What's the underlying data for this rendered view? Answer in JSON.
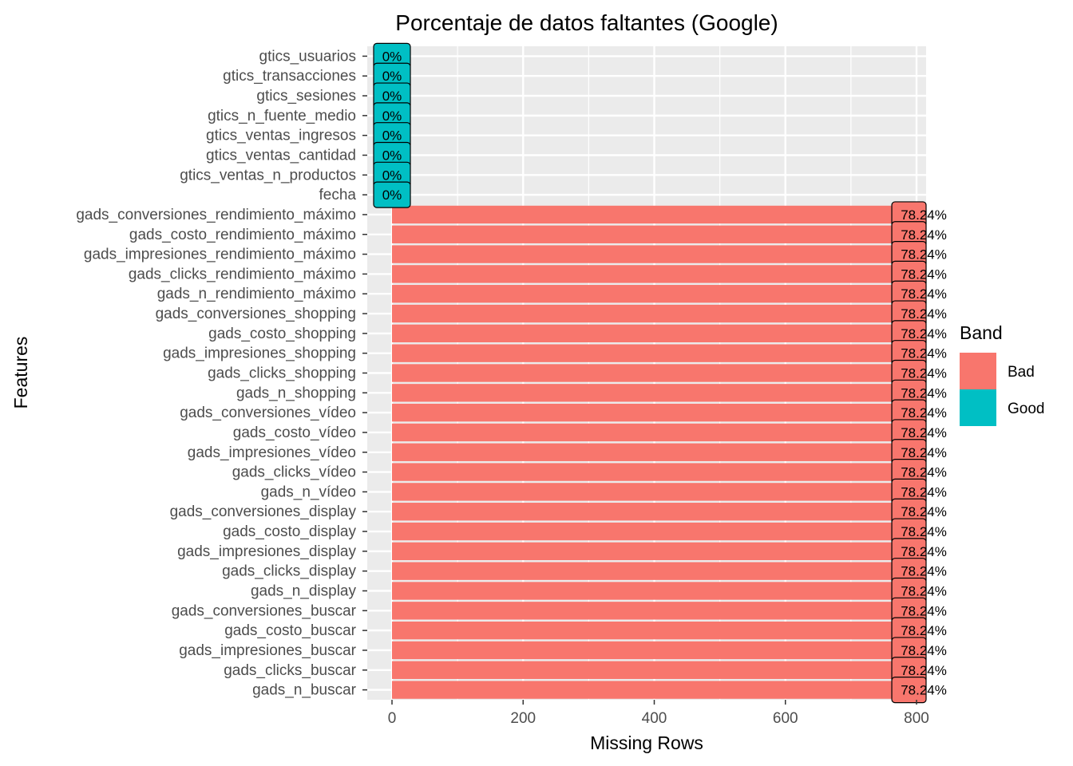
{
  "chart_data": {
    "type": "bar",
    "orientation": "horizontal",
    "title": "Porcentaje de datos faltantes (Google)",
    "xlabel": "Missing Rows",
    "ylabel": "Features",
    "xlim": [
      -30,
      810
    ],
    "x_ticks": [
      0,
      200,
      400,
      600,
      800
    ],
    "x_tick_labels": [
      "0",
      "200",
      "400",
      "600",
      "800"
    ],
    "grid": true,
    "legend": {
      "title": "Band",
      "position": "right",
      "entries": [
        {
          "label": "Bad",
          "color": "#F8766D"
        },
        {
          "label": "Good",
          "color": "#00BFC4"
        }
      ]
    },
    "categories": [
      "gtics_usuarios",
      "gtics_transacciones",
      "gtics_sesiones",
      "gtics_n_fuente_medio",
      "gtics_ventas_ingresos",
      "gtics_ventas_cantidad",
      "gtics_ventas_n_productos",
      "fecha",
      "gads_conversiones_rendimiento_máximo",
      "gads_costo_rendimiento_máximo",
      "gads_impresiones_rendimiento_máximo",
      "gads_clicks_rendimiento_máximo",
      "gads_n_rendimiento_máximo",
      "gads_conversiones_shopping",
      "gads_costo_shopping",
      "gads_impresiones_shopping",
      "gads_clicks_shopping",
      "gads_n_shopping",
      "gads_conversiones_vídeo",
      "gads_costo_vídeo",
      "gads_impresiones_vídeo",
      "gads_clicks_vídeo",
      "gads_n_vídeo",
      "gads_conversiones_display",
      "gads_costo_display",
      "gads_impresiones_display",
      "gads_clicks_display",
      "gads_n_display",
      "gads_conversiones_buscar",
      "gads_costo_buscar",
      "gads_impresiones_buscar",
      "gads_clicks_buscar",
      "gads_n_buscar"
    ],
    "values": [
      0,
      0,
      0,
      0,
      0,
      0,
      0,
      0,
      811,
      811,
      811,
      811,
      811,
      811,
      811,
      811,
      811,
      811,
      811,
      811,
      811,
      811,
      811,
      811,
      811,
      811,
      811,
      811,
      811,
      811,
      811,
      811,
      811
    ],
    "bands": [
      "Good",
      "Good",
      "Good",
      "Good",
      "Good",
      "Good",
      "Good",
      "Good",
      "Bad",
      "Bad",
      "Bad",
      "Bad",
      "Bad",
      "Bad",
      "Bad",
      "Bad",
      "Bad",
      "Bad",
      "Bad",
      "Bad",
      "Bad",
      "Bad",
      "Bad",
      "Bad",
      "Bad",
      "Bad",
      "Bad",
      "Bad",
      "Bad",
      "Bad",
      "Bad",
      "Bad",
      "Bad"
    ],
    "labels": [
      "0%",
      "0%",
      "0%",
      "0%",
      "0%",
      "0%",
      "0%",
      "0%",
      "78.24%",
      "78.24%",
      "78.24%",
      "78.24%",
      "78.24%",
      "78.24%",
      "78.24%",
      "78.24%",
      "78.24%",
      "78.24%",
      "78.24%",
      "78.24%",
      "78.24%",
      "78.24%",
      "78.24%",
      "78.24%",
      "78.24%",
      "78.24%",
      "78.24%",
      "78.24%",
      "78.24%",
      "78.24%",
      "78.24%",
      "78.24%",
      "78.24%"
    ],
    "colors": {
      "Bad": "#F8766D",
      "Good": "#00BFC4",
      "panel": "#EBEBEB",
      "grid": "#FFFFFF"
    }
  }
}
